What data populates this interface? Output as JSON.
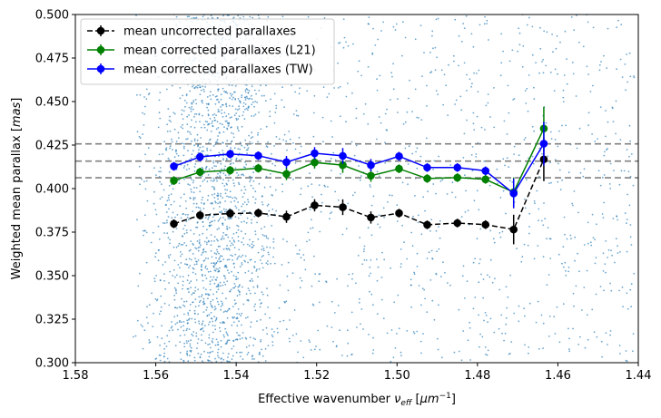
{
  "chart_data": {
    "type": "line",
    "xlabel_main": "Effective wavenumber ",
    "xlabel_symbol": "ν",
    "xlabel_sub": "eff",
    "xlabel_unit_open": " [",
    "xlabel_unit": "μm",
    "xlabel_exp": "−1",
    "xlabel_unit_close": "]",
    "ylabel_main": "Weighted mean parallax [",
    "ylabel_unit": "mas",
    "ylabel_close": "]",
    "xlim": [
      1.58,
      1.44
    ],
    "ylim": [
      0.3,
      0.5
    ],
    "xticks": [
      1.58,
      1.56,
      1.54,
      1.52,
      1.5,
      1.48,
      1.46,
      1.44
    ],
    "xtick_labels": [
      "1.58",
      "1.56",
      "1.54",
      "1.52",
      "1.50",
      "1.48",
      "1.46",
      "1.44"
    ],
    "yticks": [
      0.3,
      0.325,
      0.35,
      0.375,
      0.4,
      0.425,
      0.45,
      0.475,
      0.5
    ],
    "ytick_labels": [
      "0.300",
      "0.325",
      "0.350",
      "0.375",
      "0.400",
      "0.425",
      "0.450",
      "0.475",
      "0.500"
    ],
    "hlines": [
      0.4062,
      0.4158,
      0.4257
    ],
    "hline_color": "#808080",
    "scatter": {
      "color": "#1f77b4",
      "description_range_x": [
        1.58,
        1.44
      ],
      "density_peak_x": 1.545
    },
    "x": [
      1.5555,
      1.549,
      1.5415,
      1.5345,
      1.5275,
      1.5205,
      1.5135,
      1.5065,
      1.4995,
      1.4925,
      1.485,
      1.478,
      1.471,
      1.4635
    ],
    "series": [
      {
        "name": "mean uncorrected parallaxes",
        "color": "#000000",
        "dashed": true,
        "values": [
          0.3798,
          0.3847,
          0.3857,
          0.386,
          0.3838,
          0.3904,
          0.3893,
          0.3834,
          0.3859,
          0.3792,
          0.3802,
          0.3793,
          0.3765,
          0.4168
        ],
        "errors": [
          0.0025,
          0.0025,
          0.0025,
          0.0025,
          0.0035,
          0.0035,
          0.0045,
          0.0035,
          0.0025,
          0.0025,
          0.0025,
          0.0025,
          0.0085,
          0.0125
        ]
      },
      {
        "name": "mean corrected parallaxes (L21)",
        "color": "#008000",
        "dashed": false,
        "values": [
          0.4046,
          0.4095,
          0.4105,
          0.4117,
          0.4084,
          0.415,
          0.4135,
          0.4074,
          0.4114,
          0.4058,
          0.4063,
          0.4053,
          0.3979,
          0.4345
        ],
        "errors": [
          0.0025,
          0.0025,
          0.0025,
          0.0025,
          0.0035,
          0.0035,
          0.0045,
          0.0035,
          0.0025,
          0.0025,
          0.0025,
          0.0025,
          0.0085,
          0.0125
        ]
      },
      {
        "name": "mean corrected parallaxes (TW)",
        "color": "#0000ff",
        "dashed": false,
        "values": [
          0.4128,
          0.4182,
          0.4199,
          0.4189,
          0.4152,
          0.4203,
          0.4188,
          0.4135,
          0.4186,
          0.4121,
          0.4121,
          0.4102,
          0.3972,
          0.4258
        ],
        "errors": [
          0.0025,
          0.0025,
          0.0025,
          0.0025,
          0.0035,
          0.0035,
          0.0045,
          0.0035,
          0.0025,
          0.0025,
          0.0025,
          0.0025,
          0.0085,
          0.0125
        ]
      }
    ],
    "legend_position": "top-left"
  }
}
